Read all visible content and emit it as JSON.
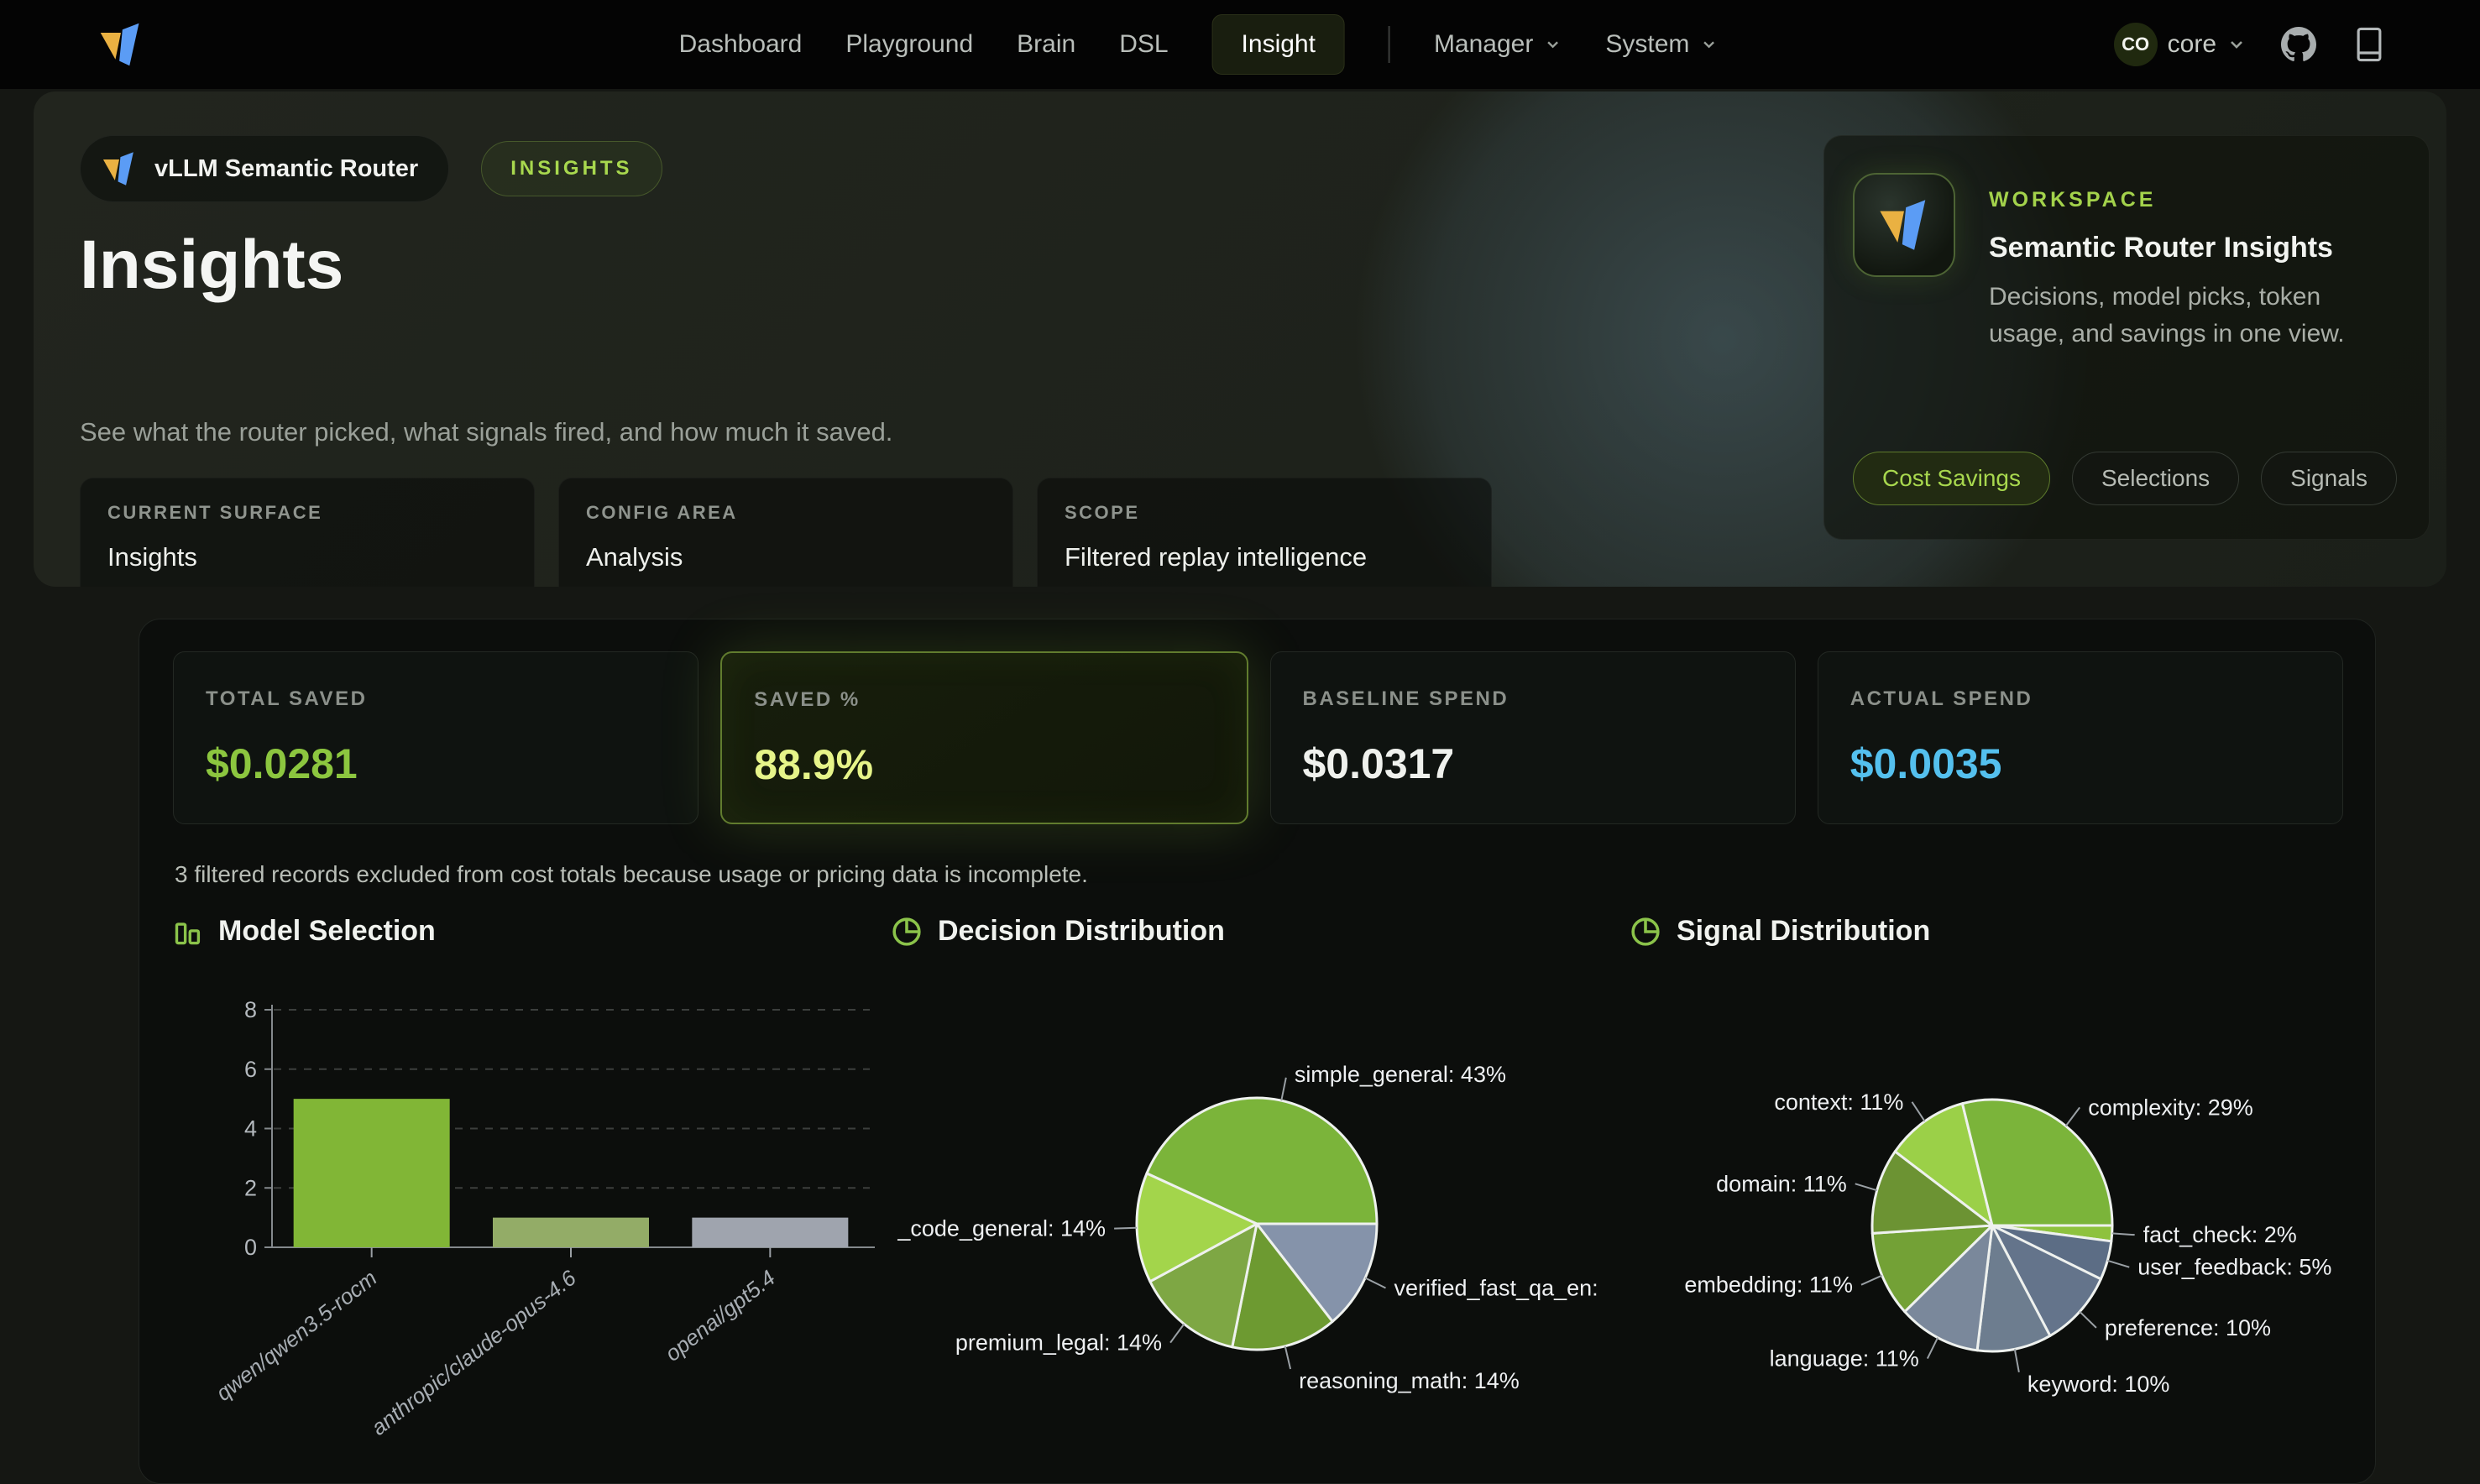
{
  "nav": {
    "items": [
      {
        "label": "Dashboard",
        "active": false
      },
      {
        "label": "Playground",
        "active": false
      },
      {
        "label": "Brain",
        "active": false
      },
      {
        "label": "DSL",
        "active": false
      },
      {
        "label": "Insight",
        "active": true
      }
    ],
    "dropdowns": [
      {
        "label": "Manager"
      },
      {
        "label": "System"
      }
    ],
    "user": {
      "initials": "CO",
      "name": "core"
    }
  },
  "hero": {
    "app_badge": "vLLM Semantic Router",
    "tag": "INSIGHTS",
    "title": "Insights",
    "subtitle": "See what the router picked, what signals fired, and how much it saved.",
    "info_cards": [
      {
        "label": "CURRENT SURFACE",
        "value": "Insights"
      },
      {
        "label": "CONFIG AREA",
        "value": "Analysis"
      },
      {
        "label": "SCOPE",
        "value": "Filtered replay intelligence"
      }
    ],
    "workspace": {
      "eyebrow": "WORKSPACE",
      "title": "Semantic Router Insights",
      "description": "Decisions, model picks, token usage, and savings in one view.",
      "chips": [
        {
          "label": "Cost Savings",
          "active": true
        },
        {
          "label": "Selections",
          "active": false
        },
        {
          "label": "Signals",
          "active": false
        }
      ]
    }
  },
  "stats": [
    {
      "label": "TOTAL SAVED",
      "value": "$0.0281",
      "color": "#8cc63f",
      "highlight": false
    },
    {
      "label": "SAVED %",
      "value": "88.9%",
      "color": "#e6f489",
      "highlight": true
    },
    {
      "label": "BASELINE SPEND",
      "value": "$0.0317",
      "color": "#eff1ed",
      "highlight": false
    },
    {
      "label": "ACTUAL SPEND",
      "value": "$0.0035",
      "color": "#54c0ee",
      "highlight": false
    }
  ],
  "note": "3 filtered records excluded from cost totals because usage or pricing data is incomplete.",
  "chart_data": [
    {
      "type": "bar",
      "title": "Model Selection",
      "categories": [
        "qwen/qwen3.5-rocm",
        "anthropic/claude-opus-4.6",
        "openai/gpt5.4"
      ],
      "values": [
        5,
        1,
        1
      ],
      "bar_colors": [
        "#81b636",
        "#93ac67",
        "#9fa4ae"
      ],
      "ylim": [
        0,
        8
      ],
      "yticks": [
        0,
        2,
        4,
        6,
        8
      ],
      "grid": "horizontal-dashed",
      "xlabel": "",
      "ylabel": ""
    },
    {
      "type": "pie",
      "title": "Decision Distribution",
      "label_format": "{label}: {value}%",
      "start_angle": "east",
      "direction": "clockwise",
      "slices": [
        {
          "label": "verified_fast_qa_en",
          "value": 14,
          "color": "#8593aa"
        },
        {
          "label": "reasoning_math",
          "value": 14,
          "color": "#6d9a31"
        },
        {
          "label": "premium_legal",
          "value": 14,
          "color": "#7ea744"
        },
        {
          "label": "_code_general",
          "value": 14,
          "color": "#a3d54b"
        },
        {
          "label": "simple_general",
          "value": 43,
          "color": "#7bb43a"
        }
      ]
    },
    {
      "type": "pie",
      "title": "Signal Distribution",
      "label_format": "{label}: {value}%",
      "start_angle": "east",
      "direction": "clockwise",
      "slices": [
        {
          "label": "fact_check",
          "value": 2,
          "color": "#8ec23e"
        },
        {
          "label": "user_feedback",
          "value": 5,
          "color": "#5c6d85"
        },
        {
          "label": "preference",
          "value": 10,
          "color": "#64748b"
        },
        {
          "label": "keyword",
          "value": 10,
          "color": "#6d7d8f"
        },
        {
          "label": "language",
          "value": 11,
          "color": "#7a889b"
        },
        {
          "label": "embedding",
          "value": 11,
          "color": "#73a136"
        },
        {
          "label": "domain",
          "value": 11,
          "color": "#6c9333"
        },
        {
          "label": "context",
          "value": 11,
          "color": "#9bd048"
        },
        {
          "label": "complexity",
          "value": 29,
          "color": "#7bb43a"
        }
      ]
    }
  ],
  "colors": {
    "accent_green": "#8bc34a",
    "accent_cyan": "#54c0ee",
    "logo_yellow": "#eab142",
    "logo_blue": "#5b9cf5"
  }
}
